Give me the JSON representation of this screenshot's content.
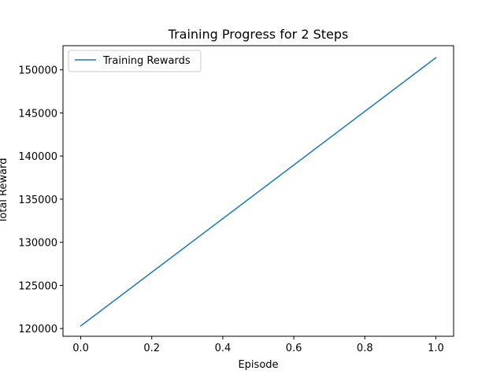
{
  "chart_data": {
    "type": "line",
    "title": "Training Progress for 2 Steps",
    "xlabel": "Episode",
    "ylabel": "Total Reward",
    "xlim": [
      -0.05,
      1.05
    ],
    "ylim": [
      119100,
      152800
    ],
    "grid": false,
    "legend_position": "top-left",
    "x_ticks": [
      0.0,
      0.2,
      0.4,
      0.6,
      0.8,
      1.0
    ],
    "x_tick_labels": [
      "0.0",
      "0.2",
      "0.4",
      "0.6",
      "0.8",
      "1.0"
    ],
    "y_ticks": [
      120000,
      125000,
      130000,
      135000,
      140000,
      145000,
      150000
    ],
    "y_tick_labels": [
      "120000",
      "125000",
      "130000",
      "135000",
      "140000",
      "145000",
      "150000"
    ],
    "series": [
      {
        "name": "Training Rewards",
        "color": "#1f77b4",
        "x": [
          0,
          1
        ],
        "values": [
          120300,
          151400
        ]
      }
    ]
  }
}
